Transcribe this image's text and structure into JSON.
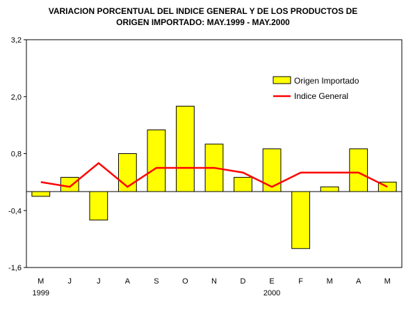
{
  "chart_data": {
    "type": "bar",
    "title_lines": [
      "VARIACION PORCENTUAL DEL INDICE GENERAL Y DE LOS PRODUCTOS DE",
      "ORIGEN IMPORTADO: MAY.1999 - MAY.2000"
    ],
    "categories": [
      "M",
      "J",
      "J",
      "A",
      "S",
      "O",
      "N",
      "D",
      "E",
      "F",
      "M",
      "A",
      "M"
    ],
    "year_labels": [
      {
        "index": 0,
        "label": "1999"
      },
      {
        "index": 8,
        "label": "2000"
      }
    ],
    "series": [
      {
        "name": "Origen Importado",
        "kind": "bar",
        "color": "#ffff00",
        "values": [
          -0.1,
          0.3,
          -0.6,
          0.8,
          1.3,
          1.8,
          1.0,
          0.3,
          0.9,
          -1.2,
          0.1,
          0.9,
          0.2
        ]
      },
      {
        "name": "Indice General",
        "kind": "line",
        "color": "#ff0000",
        "values": [
          0.2,
          0.1,
          0.6,
          0.1,
          0.5,
          0.5,
          0.5,
          0.4,
          0.1,
          0.4,
          0.4,
          0.4,
          0.1
        ]
      }
    ],
    "y_ticks": [
      "3,2",
      "2,0",
      "0,8",
      "-0,4",
      "-1,6"
    ],
    "y_tick_values": [
      3.2,
      2.0,
      0.8,
      -0.4,
      -1.6
    ],
    "ylim": [
      -1.6,
      3.2
    ],
    "legend_position": "top-right",
    "grid": false
  }
}
